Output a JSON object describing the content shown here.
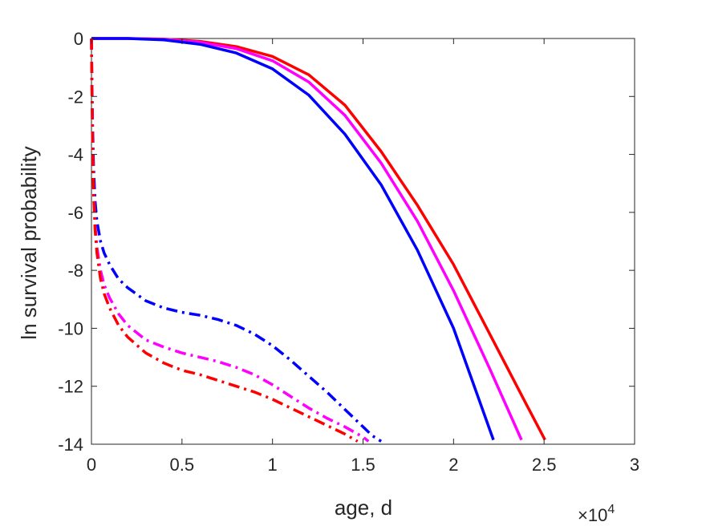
{
  "chart_data": {
    "type": "line",
    "title": "",
    "xlabel": "age, d",
    "ylabel": "ln survival probability",
    "x_exponent_label": "×10",
    "x_exponent_power": "4",
    "xlim": [
      0,
      30000
    ],
    "ylim": [
      -14,
      0
    ],
    "x_ticks": [
      0,
      5000,
      10000,
      15000,
      20000,
      25000,
      30000
    ],
    "x_tick_labels": [
      "0",
      "0.5",
      "1",
      "1.5",
      "2",
      "2.5",
      "3"
    ],
    "y_ticks": [
      0,
      -2,
      -4,
      -6,
      -8,
      -10,
      -12,
      -14
    ],
    "y_tick_labels": [
      "0",
      "-2",
      "-4",
      "-6",
      "-8",
      "-10",
      "-12",
      "-14"
    ],
    "grid": false,
    "legend": "none",
    "series": [
      {
        "color": "#ff0000",
        "style": "solid",
        "x": [
          0,
          2000,
          4000,
          6000,
          8000,
          10000,
          12000,
          14000,
          16000,
          18000,
          20000,
          22000,
          24000,
          25050
        ],
        "y": [
          0,
          0,
          -0.02,
          -0.1,
          -0.28,
          -0.62,
          -1.25,
          -2.3,
          -3.9,
          -5.75,
          -7.8,
          -10.2,
          -12.6,
          -13.85
        ]
      },
      {
        "color": "#ff00ff",
        "style": "solid",
        "x": [
          0,
          2000,
          4000,
          6000,
          8000,
          10000,
          12000,
          14000,
          16000,
          18000,
          20000,
          22000,
          23750
        ],
        "y": [
          0,
          0,
          -0.03,
          -0.13,
          -0.35,
          -0.77,
          -1.5,
          -2.65,
          -4.3,
          -6.3,
          -8.7,
          -11.4,
          -13.85
        ]
      },
      {
        "color": "#0000ff",
        "style": "solid",
        "x": [
          0,
          2000,
          4000,
          6000,
          8000,
          10000,
          12000,
          14000,
          16000,
          18000,
          20000,
          22200
        ],
        "y": [
          0,
          0,
          -0.05,
          -0.2,
          -0.5,
          -1.05,
          -1.95,
          -3.3,
          -5.05,
          -7.3,
          -10.0,
          -13.85
        ]
      },
      {
        "color": "#0000ff",
        "style": "dashdot",
        "x": [
          0,
          20,
          60,
          120,
          200,
          300,
          500,
          700,
          1000,
          1500,
          2000,
          3000,
          4000,
          5000,
          6000,
          7000,
          8000,
          9000,
          10000,
          11000,
          12000,
          13000,
          14000,
          15000,
          15500,
          16000
        ],
        "y": [
          0,
          -1.2,
          -3.0,
          -4.5,
          -5.6,
          -6.3,
          -7.0,
          -7.4,
          -7.8,
          -8.3,
          -8.6,
          -9.05,
          -9.3,
          -9.45,
          -9.55,
          -9.7,
          -9.9,
          -10.2,
          -10.6,
          -11.1,
          -11.65,
          -12.2,
          -12.8,
          -13.4,
          -13.7,
          -13.9
        ]
      },
      {
        "color": "#ff00ff",
        "style": "dashdot",
        "x": [
          0,
          20,
          60,
          120,
          200,
          300,
          500,
          700,
          1000,
          1500,
          2000,
          3000,
          4000,
          5000,
          6000,
          7000,
          8000,
          9000,
          10000,
          11000,
          12000,
          13000,
          14000,
          15000,
          15300
        ],
        "y": [
          0,
          -1.4,
          -3.5,
          -5.2,
          -6.4,
          -7.2,
          -8.0,
          -8.5,
          -8.95,
          -9.5,
          -9.9,
          -10.4,
          -10.65,
          -10.85,
          -11.0,
          -11.15,
          -11.35,
          -11.6,
          -11.95,
          -12.35,
          -12.75,
          -13.1,
          -13.4,
          -13.75,
          -13.9
        ]
      },
      {
        "color": "#ff0000",
        "style": "dashdot",
        "x": [
          0,
          20,
          60,
          120,
          200,
          300,
          500,
          700,
          1000,
          1500,
          2000,
          3000,
          4000,
          5000,
          6000,
          7000,
          8000,
          9000,
          10000,
          11000,
          12000,
          13000,
          14000,
          14700
        ],
        "y": [
          0,
          -1.5,
          -3.7,
          -5.4,
          -6.6,
          -7.4,
          -8.3,
          -8.8,
          -9.3,
          -9.9,
          -10.3,
          -10.85,
          -11.2,
          -11.45,
          -11.6,
          -11.8,
          -12.0,
          -12.2,
          -12.45,
          -12.75,
          -13.05,
          -13.35,
          -13.65,
          -13.9
        ]
      }
    ]
  }
}
